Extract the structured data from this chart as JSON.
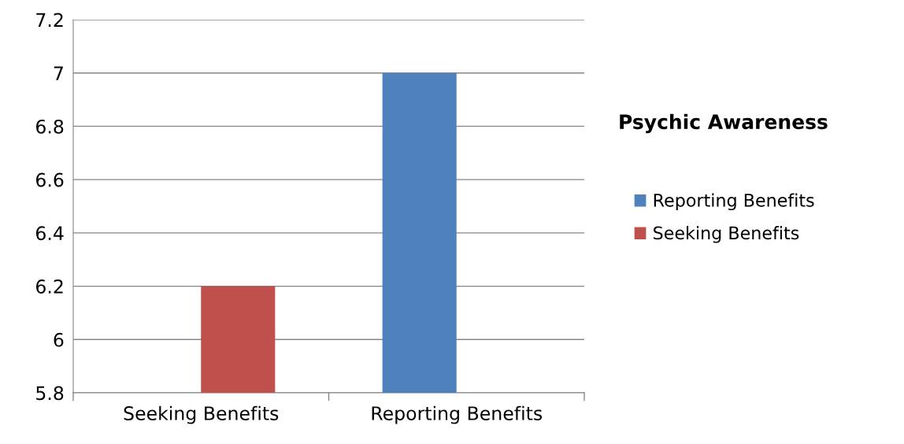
{
  "chart_data": {
    "type": "bar",
    "title": "Psychic Awareness",
    "categories": [
      "Seeking Benefits",
      "Reporting Benefits"
    ],
    "series": [
      {
        "name": "Reporting Benefits",
        "color": "#4f81bd",
        "values": [
          null,
          7.0
        ]
      },
      {
        "name": "Seeking Benefits",
        "color": "#c0504d",
        "values": [
          6.2,
          null
        ]
      }
    ],
    "ylim": [
      5.8,
      7.2
    ],
    "yticks": [
      {
        "value": 5.8,
        "label": "5.8"
      },
      {
        "value": 6.0,
        "label": "6"
      },
      {
        "value": 6.2,
        "label": "6.2"
      },
      {
        "value": 6.4,
        "label": "6.4"
      },
      {
        "value": 6.6,
        "label": "6.6"
      },
      {
        "value": 6.8,
        "label": "6.8"
      },
      {
        "value": 7.0,
        "label": "7"
      },
      {
        "value": 7.2,
        "label": "7.2"
      }
    ],
    "grid": "y",
    "legend": "right"
  }
}
